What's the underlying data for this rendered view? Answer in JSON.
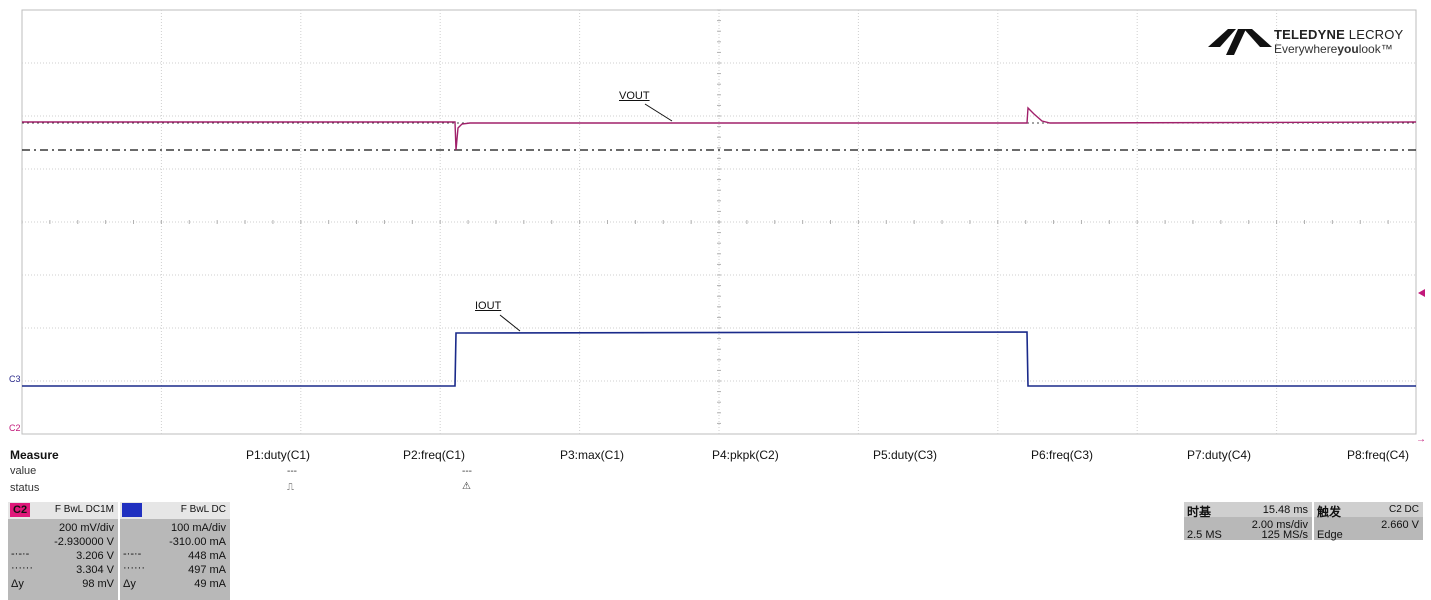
{
  "brand": {
    "name_bold": "TELEDYNE",
    "name_light": " LECROY",
    "tagline_pre": "Everywhere",
    "tagline_bold": "you",
    "tagline_post": "look",
    "tagline_tm": "™"
  },
  "traces": {
    "vout_label": "VOUT",
    "iout_label": "IOUT",
    "vout_color": "#a0206a",
    "iout_color": "#1a2a8a"
  },
  "markers": {
    "c3": "C3",
    "c2": "C2"
  },
  "measure": {
    "title": "Measure",
    "row_value": "value",
    "row_status": "status",
    "params": [
      {
        "name": "P1:duty(C1)",
        "value": "---",
        "status": "⎍"
      },
      {
        "name": "P2:freq(C1)",
        "value": "---",
        "status": "⚠"
      },
      {
        "name": "P3:max(C1)",
        "value": "",
        "status": ""
      },
      {
        "name": "P4:pkpk(C2)",
        "value": "",
        "status": ""
      },
      {
        "name": "P5:duty(C3)",
        "value": "",
        "status": ""
      },
      {
        "name": "P6:freq(C3)",
        "value": "",
        "status": ""
      },
      {
        "name": "P7:duty(C4)",
        "value": "",
        "status": ""
      },
      {
        "name": "P8:freq(C4)",
        "value": "",
        "status": ""
      }
    ]
  },
  "channels": [
    {
      "tag": "C2",
      "tag_color": "#e0187a",
      "coupling": "F BwL DC1M",
      "volts_div": "200 mV/div",
      "offset": "-2.930000 V",
      "cursor1": "3.206 V",
      "cursor2": "3.304 V",
      "delta_label": "Δy",
      "delta": "98 mV"
    },
    {
      "tag": "C3",
      "tag_color": "#2030c0",
      "coupling": "F BwL DC",
      "volts_div": "100 mA/div",
      "offset": "-310.00 mA",
      "cursor1": "448 mA",
      "cursor2": "497 mA",
      "delta_label": "Δy",
      "delta": "49 mA"
    }
  ],
  "timebase": {
    "label": "时基",
    "delay": "15.48 ms",
    "time_div": "2.00 ms/div",
    "samples": "2.5 MS",
    "rate": "125 MS/s"
  },
  "trigger": {
    "label": "触发",
    "source": "C2 DC",
    "level": "2.660 V",
    "type": "Edge"
  }
}
